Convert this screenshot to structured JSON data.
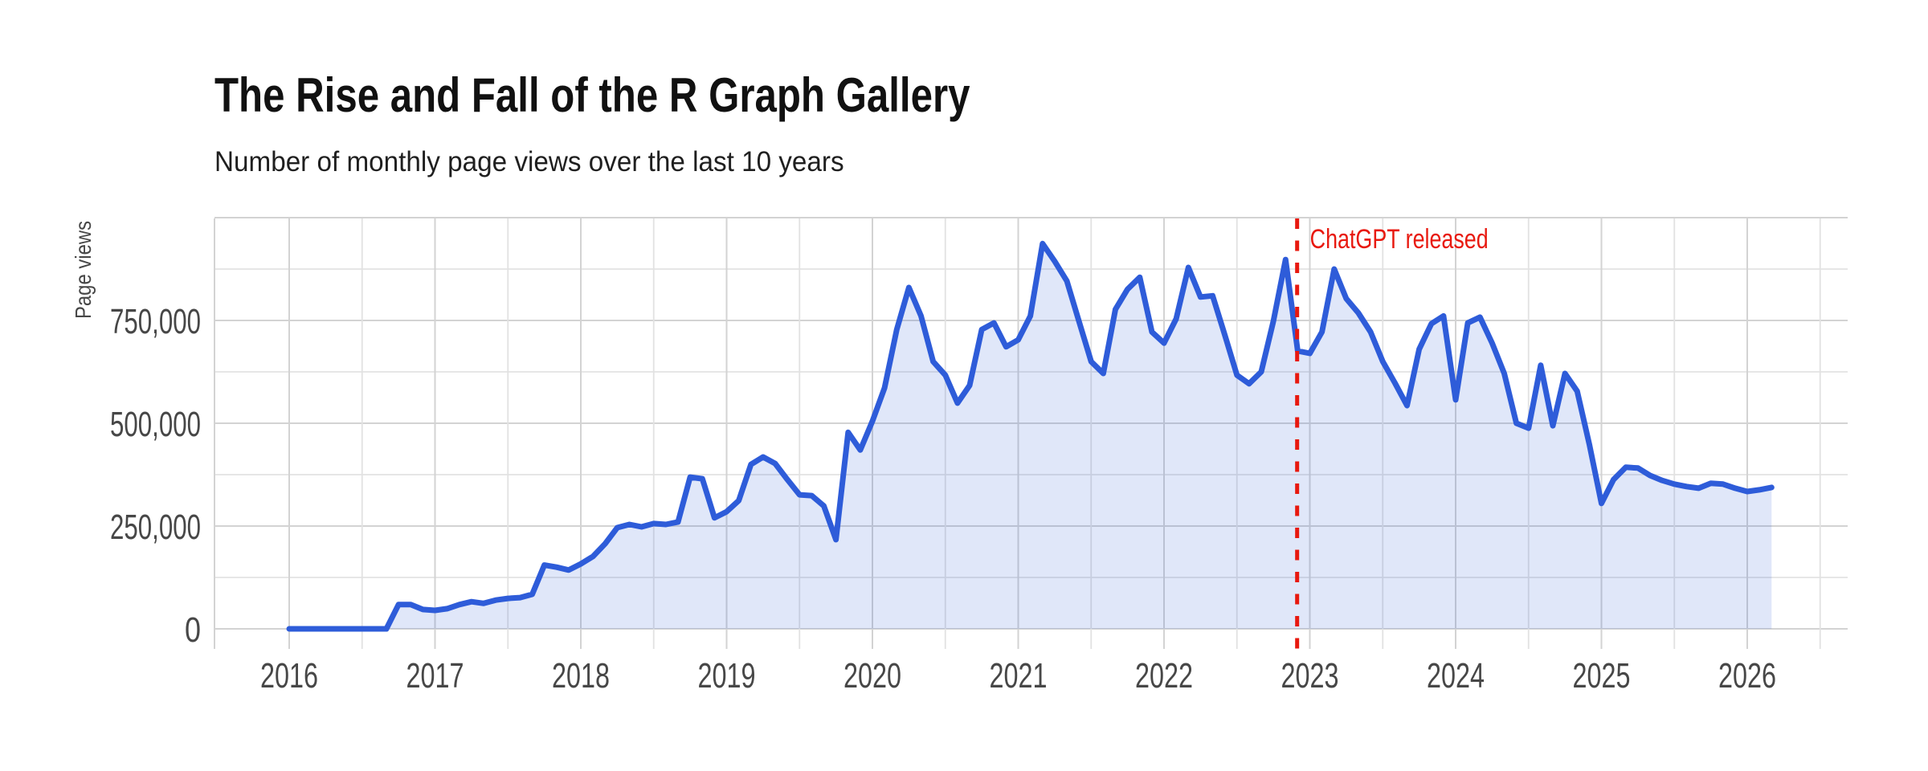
{
  "chart_data": {
    "type": "area",
    "title": "The Rise and Fall of the R Graph Gallery",
    "subtitle": "Number of monthly page views over the last 10 years",
    "ylabel": "Page views",
    "xlabel": "",
    "legend": "none",
    "grid": "on",
    "x_unit": "month",
    "x_range": {
      "start": "2016-01",
      "end": "2026-03"
    },
    "ylim": [
      0,
      1000000
    ],
    "x_ticks": [
      "2016",
      "2017",
      "2018",
      "2019",
      "2020",
      "2021",
      "2022",
      "2023",
      "2024",
      "2025",
      "2026"
    ],
    "y_ticks": [
      {
        "value": 0,
        "label": "0"
      },
      {
        "value": 250000,
        "label": "250,000"
      },
      {
        "value": 500000,
        "label": "500,000"
      },
      {
        "value": 750000,
        "label": "750,000"
      }
    ],
    "gridlines": {
      "h_major": [
        0,
        250000,
        500000,
        750000,
        1000000
      ],
      "h_minor": [
        125000,
        375000,
        625000,
        875000
      ],
      "v_major": "every year 2016-2026",
      "v_minor": "every half year"
    },
    "annotation": {
      "text": "ChatGPT released",
      "date": "2022-11-30"
    },
    "series": [
      {
        "name": "Monthly page views",
        "start": "2016-01",
        "values": [
          0,
          0,
          0,
          0,
          0,
          0,
          0,
          0,
          0,
          59000,
          59000,
          47000,
          45000,
          49000,
          59000,
          66000,
          62000,
          70000,
          74000,
          76000,
          84000,
          155000,
          150000,
          143000,
          158000,
          176000,
          207000,
          246000,
          254000,
          248000,
          256000,
          254000,
          260000,
          369000,
          365000,
          270000,
          285000,
          312000,
          400000,
          418000,
          402000,
          363000,
          326000,
          324000,
          299000,
          217000,
          478000,
          435000,
          505000,
          586000,
          728000,
          830000,
          761000,
          650000,
          617000,
          549000,
          592000,
          728000,
          744000,
          686000,
          703000,
          761000,
          937000,
          894000,
          846000,
          748000,
          650000,
          621000,
          777000,
          826000,
          855000,
          722000,
          695000,
          754000,
          879000,
          807000,
          810000,
          715000,
          617000,
          596000,
          625000,
          748000,
          898000,
          676000,
          670000,
          722000,
          875000,
          803000,
          768000,
          722000,
          650000,
          598000,
          543000,
          680000,
          742000,
          761000,
          557000,
          744000,
          758000,
          695000,
          621000,
          500000,
          488000,
          641000,
          494000,
          621000,
          578000,
          449000,
          305000,
          363000,
          393000,
          391000,
          373000,
          361000,
          352000,
          346000,
          342000,
          354000,
          352000,
          342000,
          334000,
          338000,
          344000
        ]
      }
    ],
    "colors": {
      "line": "#2e5cd9",
      "fill": "rgba(46,92,217,0.15)",
      "grid_major": "#d3d3d3",
      "grid_minor": "#e2e2e2",
      "axis_line": "#d3d3d3",
      "axis_text": "#474747",
      "annotation_red": "#e8190f",
      "title_text": "#111111"
    }
  }
}
